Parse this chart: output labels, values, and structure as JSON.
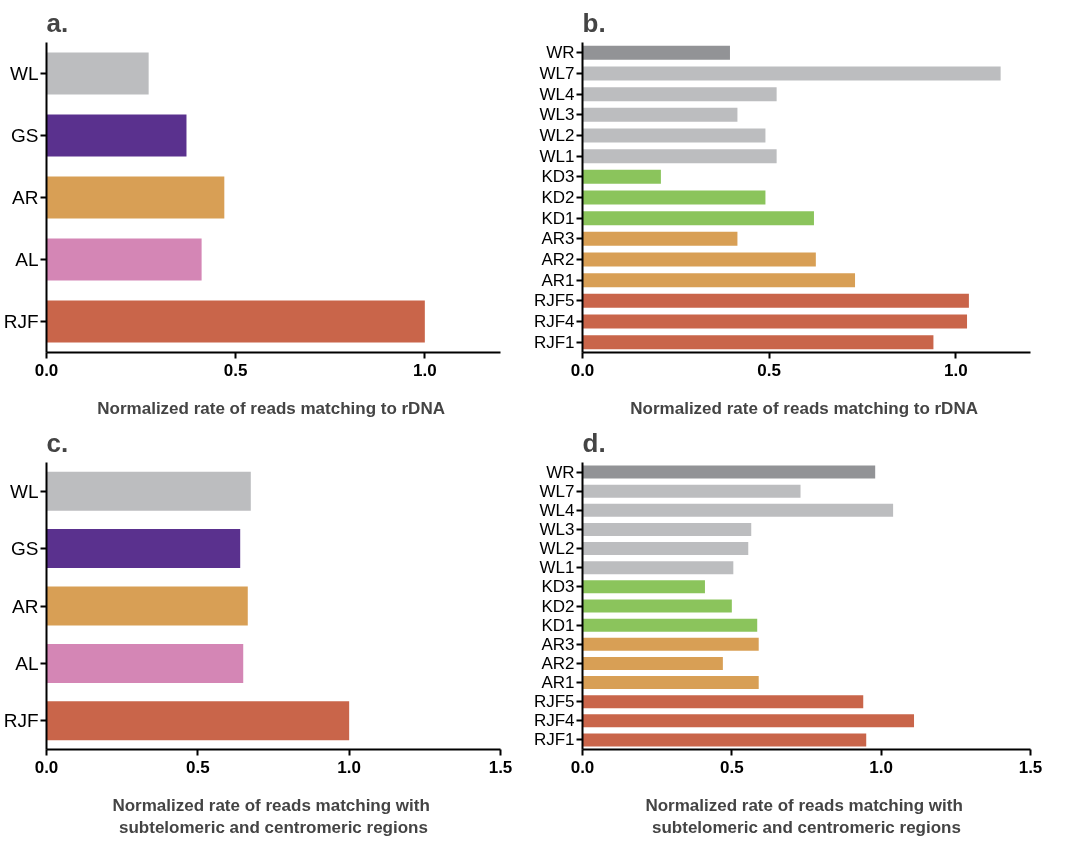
{
  "chart_data": [
    {
      "type": "bar",
      "orientation": "horizontal",
      "title": "a.",
      "xlabel": "Normalized rate of reads matching  to rDNA",
      "categories": [
        "WL",
        "GS",
        "AR",
        "AL",
        "RJF"
      ],
      "values": [
        0.27,
        0.37,
        0.47,
        0.41,
        1.0
      ],
      "colors": [
        "#bcbdbf",
        "#5a318e",
        "#d89f55",
        "#d486b5",
        "#c9654a"
      ],
      "xlim": [
        0,
        1.2
      ],
      "xticks": [
        {
          "value": 0,
          "label": "0.0"
        },
        {
          "value": 0.5,
          "label": "0.5"
        },
        {
          "value": 1.0,
          "label": "1.0"
        }
      ],
      "grid": false
    },
    {
      "type": "bar",
      "orientation": "horizontal",
      "title": "b.",
      "xlabel": "Normalized rate of reads matching  to rDNA",
      "categories": [
        "WR",
        "WL7",
        "WL4",
        "WL3",
        "WL2",
        "WL1",
        "KD3",
        "KD2",
        "KD1",
        "AR3",
        "AR2",
        "AR1",
        "RJF5",
        "RJF4",
        "RJF1"
      ],
      "values": [
        0.395,
        1.12,
        0.52,
        0.415,
        0.49,
        0.52,
        0.21,
        0.49,
        0.62,
        0.415,
        0.625,
        0.73,
        1.035,
        1.03,
        0.94
      ],
      "colors": [
        "#929396",
        "#bcbdbf",
        "#bcbdbf",
        "#bcbdbf",
        "#bcbdbf",
        "#bcbdbf",
        "#8bc45c",
        "#8bc45c",
        "#8bc45c",
        "#d89f55",
        "#d89f55",
        "#d89f55",
        "#c9654a",
        "#c9654a",
        "#c9654a"
      ],
      "xlim": [
        0,
        1.2
      ],
      "xticks": [
        {
          "value": 0,
          "label": "0.0"
        },
        {
          "value": 0.5,
          "label": "0.5"
        },
        {
          "value": 1.0,
          "label": "1.0"
        }
      ],
      "grid": false
    },
    {
      "type": "bar",
      "orientation": "horizontal",
      "title": "c.",
      "xlabel": "Normalized rate of reads matching  with subtelomeric and centromeric regions",
      "categories": [
        "WL",
        "GS",
        "AR",
        "AL",
        "RJF"
      ],
      "values": [
        0.675,
        0.64,
        0.665,
        0.65,
        1.0
      ],
      "colors": [
        "#bcbdbf",
        "#5a318e",
        "#d89f55",
        "#d486b5",
        "#c9654a"
      ],
      "xlim": [
        0,
        1.5
      ],
      "xticks": [
        {
          "value": 0,
          "label": "0.0"
        },
        {
          "value": 0.5,
          "label": "0.5"
        },
        {
          "value": 1.0,
          "label": "1.0"
        },
        1.5
      ],
      "grid": false
    },
    {
      "type": "bar",
      "orientation": "horizontal",
      "title": "d.",
      "xlabel": "Normalized rate of reads matching  with subtelomeric and centromeric regions",
      "categories": [
        "WR",
        "WL7",
        "WL4",
        "WL3",
        "WL2",
        "WL1",
        "KD3",
        "KD2",
        "KD1",
        "AR3",
        "AR2",
        "AR1",
        "RJF5",
        "RJF4",
        "RJF1"
      ],
      "values": [
        0.98,
        0.73,
        1.04,
        0.565,
        0.555,
        0.505,
        0.41,
        0.5,
        0.585,
        0.59,
        0.47,
        0.59,
        0.94,
        1.11,
        0.95
      ],
      "colors": [
        "#929396",
        "#bcbdbf",
        "#bcbdbf",
        "#bcbdbf",
        "#bcbdbf",
        "#bcbdbf",
        "#8bc45c",
        "#8bc45c",
        "#8bc45c",
        "#d89f55",
        "#d89f55",
        "#d89f55",
        "#c9654a",
        "#c9654a",
        "#c9654a"
      ],
      "xlim": [
        0,
        1.5
      ],
      "xticks": [
        {
          "value": 0,
          "label": "0.0"
        },
        {
          "value": 0.5,
          "label": "0.5"
        },
        {
          "value": 1.0,
          "label": "1.0"
        },
        1.5
      ],
      "grid": false
    }
  ]
}
